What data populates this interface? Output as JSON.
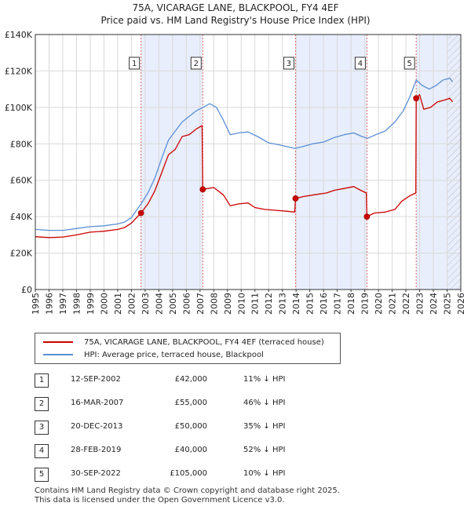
{
  "chart_data": {
    "type": "line",
    "title": "75A, VICARAGE LANE, BLACKPOOL, FY4 4EF",
    "subtitle": "Price paid vs. HM Land Registry's House Price Index (HPI)",
    "xlim": [
      1995,
      2026
    ],
    "ylim": [
      0,
      140000
    ],
    "y_ticks": [
      0,
      20000,
      40000,
      60000,
      80000,
      100000,
      120000,
      140000
    ],
    "y_tick_labels": [
      "£0",
      "£20K",
      "£40K",
      "£60K",
      "£80K",
      "£100K",
      "£120K",
      "£140K"
    ],
    "x_ticks": [
      1995,
      1996,
      1997,
      1998,
      1999,
      2000,
      2001,
      2002,
      2003,
      2004,
      2005,
      2006,
      2007,
      2008,
      2009,
      2010,
      2011,
      2012,
      2013,
      2014,
      2015,
      2016,
      2017,
      2018,
      2019,
      2020,
      2021,
      2022,
      2023,
      2024,
      2025,
      2026
    ],
    "x_tick_labels": [
      "1995",
      "1996",
      "1997",
      "1998",
      "1999",
      "2000",
      "2001",
      "2002",
      "2003",
      "2004",
      "2005",
      "2006",
      "2007",
      "2008",
      "2009",
      "2010",
      "2011",
      "2012",
      "2013",
      "2014",
      "2015",
      "2016",
      "2017",
      "2018",
      "2019",
      "2020",
      "2021",
      "2022",
      "2023",
      "2024",
      "2025",
      "2026"
    ],
    "grid": true,
    "series": [
      {
        "name": "75A, VICARAGE LANE, BLACKPOOL, FY4 4EF (terraced house)",
        "color": "#cc0000",
        "points": [
          [
            1995.0,
            29000
          ],
          [
            1996.0,
            28500
          ],
          [
            1997.0,
            28800
          ],
          [
            1998.0,
            30000
          ],
          [
            1999.0,
            31500
          ],
          [
            2000.0,
            32000
          ],
          [
            2001.0,
            33000
          ],
          [
            2001.5,
            34000
          ],
          [
            2002.0,
            36500
          ],
          [
            2002.7,
            42000
          ],
          [
            2003.2,
            47000
          ],
          [
            2003.7,
            54000
          ],
          [
            2004.2,
            64000
          ],
          [
            2004.7,
            74000
          ],
          [
            2005.2,
            77000
          ],
          [
            2005.7,
            84000
          ],
          [
            2006.2,
            85000
          ],
          [
            2006.7,
            88000
          ],
          [
            2007.15,
            90000
          ],
          [
            2007.2,
            55000
          ],
          [
            2008.0,
            56000
          ],
          [
            2008.7,
            52000
          ],
          [
            2009.2,
            46000
          ],
          [
            2009.8,
            47000
          ],
          [
            2010.5,
            47500
          ],
          [
            2011.0,
            45000
          ],
          [
            2011.7,
            44000
          ],
          [
            2012.5,
            43500
          ],
          [
            2013.3,
            43000
          ],
          [
            2013.9,
            42500
          ],
          [
            2013.96,
            50000
          ],
          [
            2014.5,
            51000
          ],
          [
            2015.3,
            52000
          ],
          [
            2016.2,
            53000
          ],
          [
            2016.8,
            54500
          ],
          [
            2017.5,
            55500
          ],
          [
            2018.2,
            56500
          ],
          [
            2018.7,
            54500
          ],
          [
            2019.12,
            53000
          ],
          [
            2019.16,
            40000
          ],
          [
            2019.7,
            42000
          ],
          [
            2020.5,
            42500
          ],
          [
            2021.2,
            44000
          ],
          [
            2021.7,
            48500
          ],
          [
            2022.3,
            51500
          ],
          [
            2022.72,
            53000
          ],
          [
            2022.75,
            105000
          ],
          [
            2023.0,
            107000
          ],
          [
            2023.3,
            99000
          ],
          [
            2023.8,
            100000
          ],
          [
            2024.3,
            103000
          ],
          [
            2024.8,
            104000
          ],
          [
            2025.2,
            105000
          ],
          [
            2025.4,
            103000
          ]
        ]
      },
      {
        "name": "HPI: Average price, terraced house, Blackpool",
        "color": "#5b8fd6",
        "points": [
          [
            1995.0,
            33000
          ],
          [
            1996.0,
            32500
          ],
          [
            1997.0,
            32500
          ],
          [
            1998.0,
            33500
          ],
          [
            1999.0,
            34500
          ],
          [
            2000.0,
            35000
          ],
          [
            2001.0,
            36000
          ],
          [
            2001.5,
            37000
          ],
          [
            2002.0,
            39500
          ],
          [
            2002.7,
            47000
          ],
          [
            2003.2,
            53000
          ],
          [
            2003.7,
            61000
          ],
          [
            2004.2,
            72000
          ],
          [
            2004.7,
            82000
          ],
          [
            2005.2,
            87000
          ],
          [
            2005.7,
            92000
          ],
          [
            2006.2,
            95000
          ],
          [
            2006.7,
            98000
          ],
          [
            2007.2,
            100000
          ],
          [
            2007.7,
            102000
          ],
          [
            2008.2,
            100000
          ],
          [
            2008.7,
            93000
          ],
          [
            2009.2,
            85000
          ],
          [
            2009.8,
            86000
          ],
          [
            2010.5,
            86500
          ],
          [
            2011.2,
            84000
          ],
          [
            2012.0,
            80500
          ],
          [
            2012.7,
            79500
          ],
          [
            2013.3,
            78500
          ],
          [
            2013.9,
            77500
          ],
          [
            2014.5,
            78500
          ],
          [
            2015.2,
            80000
          ],
          [
            2016.0,
            81000
          ],
          [
            2016.8,
            83500
          ],
          [
            2017.5,
            85000
          ],
          [
            2018.2,
            86000
          ],
          [
            2018.8,
            84000
          ],
          [
            2019.2,
            83000
          ],
          [
            2019.8,
            85000
          ],
          [
            2020.5,
            87000
          ],
          [
            2021.2,
            92000
          ],
          [
            2021.8,
            98000
          ],
          [
            2022.3,
            106000
          ],
          [
            2022.75,
            115000
          ],
          [
            2023.2,
            112000
          ],
          [
            2023.7,
            110000
          ],
          [
            2024.2,
            112000
          ],
          [
            2024.7,
            115000
          ],
          [
            2025.2,
            116000
          ],
          [
            2025.4,
            114000
          ]
        ]
      }
    ],
    "sales": [
      {
        "label": "1",
        "x": 2002.7,
        "value": 42000
      },
      {
        "label": "2",
        "x": 2007.2,
        "value": 55000
      },
      {
        "label": "3",
        "x": 2013.96,
        "value": 50000
      },
      {
        "label": "4",
        "x": 2019.16,
        "value": 40000
      },
      {
        "label": "5",
        "x": 2022.75,
        "value": 105000
      }
    ],
    "shaded_ranges": [
      [
        2002.7,
        2007.2
      ],
      [
        2013.96,
        2019.16
      ],
      [
        2022.75,
        2026.0
      ]
    ],
    "hatched_range": [
      2025.0,
      2026.0
    ],
    "legend_position": "below-chart"
  },
  "legend": {
    "property_label": "75A, VICARAGE LANE, BLACKPOOL, FY4 4EF (terraced house)",
    "hpi_label": "HPI: Average price, terraced house, Blackpool"
  },
  "sales_table": [
    {
      "num": "1",
      "date": "12-SEP-2002",
      "price": "£42,000",
      "hpi": "11% ↓ HPI"
    },
    {
      "num": "2",
      "date": "16-MAR-2007",
      "price": "£55,000",
      "hpi": "46% ↓ HPI"
    },
    {
      "num": "3",
      "date": "20-DEC-2013",
      "price": "£50,000",
      "hpi": "35% ↓ HPI"
    },
    {
      "num": "4",
      "date": "28-FEB-2019",
      "price": "£40,000",
      "hpi": "52% ↓ HPI"
    },
    {
      "num": "5",
      "date": "30-SEP-2022",
      "price": "£105,000",
      "hpi": "10% ↓ HPI"
    }
  ],
  "footer": {
    "line1": "Contains HM Land Registry data © Crown copyright and database right 2025.",
    "line2": "This data is licensed under the Open Government Licence v3.0."
  },
  "colors": {
    "property": "#cc0000",
    "hpi": "#5b8fd6",
    "shade": "#e8eefb"
  }
}
